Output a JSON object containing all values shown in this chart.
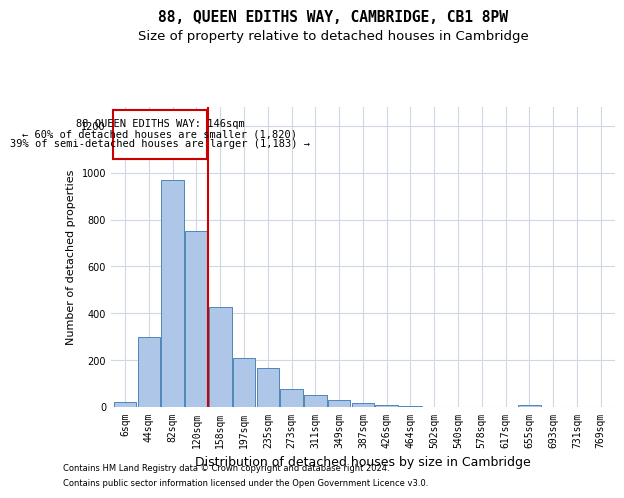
{
  "title": "88, QUEEN EDITHS WAY, CAMBRIDGE, CB1 8PW",
  "subtitle": "Size of property relative to detached houses in Cambridge",
  "xlabel": "Distribution of detached houses by size in Cambridge",
  "ylabel": "Number of detached properties",
  "categories": [
    "6sqm",
    "44sqm",
    "82sqm",
    "120sqm",
    "158sqm",
    "197sqm",
    "235sqm",
    "273sqm",
    "311sqm",
    "349sqm",
    "387sqm",
    "426sqm",
    "464sqm",
    "502sqm",
    "540sqm",
    "578sqm",
    "617sqm",
    "655sqm",
    "693sqm",
    "731sqm",
    "769sqm"
  ],
  "values": [
    20,
    300,
    970,
    750,
    425,
    210,
    165,
    75,
    50,
    30,
    15,
    10,
    5,
    2,
    1,
    1,
    1,
    10,
    1,
    1,
    1
  ],
  "bar_color": "#aec6e8",
  "bar_edge_color": "#4f87b8",
  "annotation_line1": "88 QUEEN EDITHS WAY: 146sqm",
  "annotation_line2": "← 60% of detached houses are smaller (1,820)",
  "annotation_line3": "39% of semi-detached houses are larger (1,183) →",
  "ylim": [
    0,
    1280
  ],
  "yticks": [
    0,
    200,
    400,
    600,
    800,
    1000,
    1200
  ],
  "footer1": "Contains HM Land Registry data © Crown copyright and database right 2024.",
  "footer2": "Contains public sector information licensed under the Open Government Licence v3.0.",
  "bg_color": "#ffffff",
  "grid_color": "#d0d8e8",
  "annotation_box_color": "#ffffff",
  "annotation_box_edge": "#cc0000"
}
